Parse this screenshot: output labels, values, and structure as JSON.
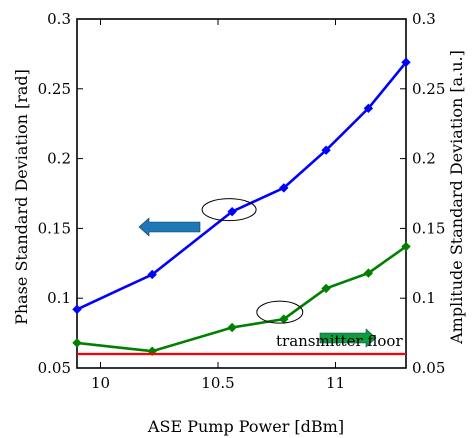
{
  "chart_data": {
    "type": "line",
    "xlabel": "ASE Pump Power [dBm]",
    "ylabel_left": "Phase Standard Deviation [rad]",
    "ylabel_right": "Amplitude Standard Deviation [a.u.]",
    "xlim": [
      9.9,
      11.3
    ],
    "ylim_left": [
      0.05,
      0.3
    ],
    "ylim_right": [
      0.05,
      0.3
    ],
    "x_ticks": [
      10,
      10.5,
      11
    ],
    "x_tick_labels": [
      "10",
      "10.5",
      "11"
    ],
    "y_ticks": [
      0.05,
      0.1,
      0.15,
      0.2,
      0.25,
      0.3
    ],
    "y_tick_labels": [
      "0.05",
      "0.1",
      "0.15",
      "0.2",
      "0.25",
      "0.3"
    ],
    "grid": false,
    "series": [
      {
        "axis": "left",
        "color": "#0000ff",
        "marker": "diamond",
        "points": [
          [
            9.9,
            0.092
          ],
          [
            10.22,
            0.117
          ],
          [
            10.56,
            0.162
          ],
          [
            10.78,
            0.179
          ],
          [
            10.96,
            0.206
          ],
          [
            11.14,
            0.236
          ],
          [
            11.3,
            0.269
          ]
        ]
      },
      {
        "axis": "right",
        "color": "#008000",
        "marker": "diamond",
        "points": [
          [
            9.9,
            0.068
          ],
          [
            10.22,
            0.062
          ],
          [
            10.56,
            0.079
          ],
          [
            10.78,
            0.085
          ],
          [
            10.96,
            0.107
          ],
          [
            11.14,
            0.118
          ],
          [
            11.3,
            0.137
          ]
        ]
      },
      {
        "axis": "left",
        "color": "#ff0000",
        "marker": "none",
        "points": [
          [
            9.9,
            0.06
          ],
          [
            11.3,
            0.06
          ]
        ]
      }
    ],
    "annotations": [
      {
        "text": "transmitter floor"
      }
    ],
    "arrows": [
      {
        "direction": "left",
        "color": "#1f77b4",
        "series": 0
      },
      {
        "direction": "right",
        "color": "#109c3c",
        "series": 1
      }
    ]
  }
}
